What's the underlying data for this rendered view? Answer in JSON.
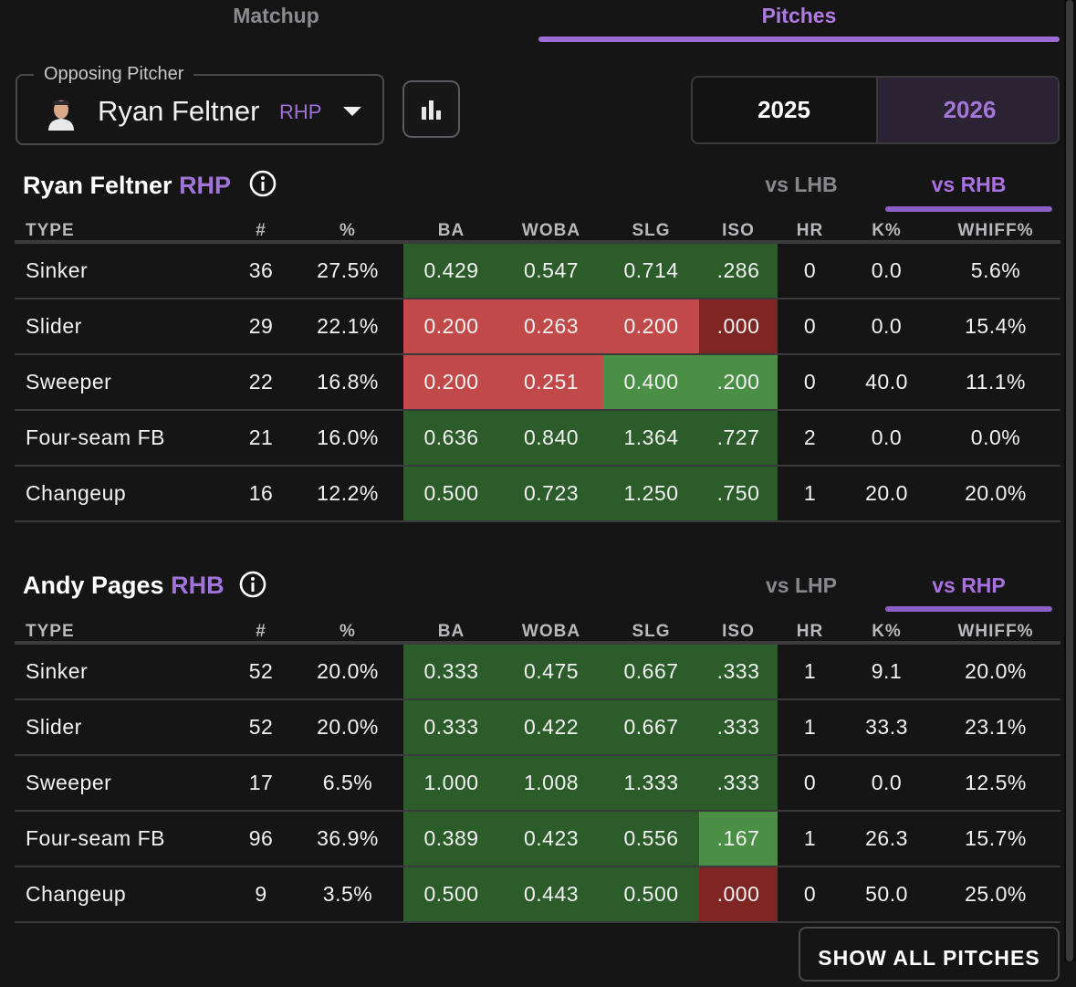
{
  "tabs": [
    {
      "label": "Matchup",
      "active": false
    },
    {
      "label": "Pitches",
      "active": true
    }
  ],
  "pitcher_select": {
    "legend": "Opposing Pitcher",
    "name": "Ryan Feltner",
    "hand": "RHP"
  },
  "years": [
    {
      "label": "2025",
      "active": false
    },
    {
      "label": "2026",
      "active": true
    }
  ],
  "colors": {
    "accent": "#9d6cd6",
    "good": "#2b5c2a",
    "good_strong": "#4a8f45",
    "bad": "#c2494a",
    "bad_strong": "#7f2523"
  },
  "columns": [
    "TYPE",
    "#",
    "%",
    "BA",
    "WOBA",
    "SLG",
    "ISO",
    "HR",
    "K%",
    "WHIFF%"
  ],
  "pitcher_section": {
    "name": "Ryan Feltner",
    "hand": "RHP",
    "splits": [
      {
        "label": "vs LHB",
        "active": false
      },
      {
        "label": "vs RHB",
        "active": true
      }
    ],
    "rows": [
      {
        "type": "Sinker",
        "count": "36",
        "pct": "27.5%",
        "ba": "0.429",
        "woba": "0.547",
        "slg": "0.714",
        "iso": ".286",
        "hr": "0",
        "k": "0.0",
        "whiff": "5.6%",
        "colors": {
          "ba": "green",
          "woba": "green",
          "slg": "green",
          "iso": "green"
        }
      },
      {
        "type": "Slider",
        "count": "29",
        "pct": "22.1%",
        "ba": "0.200",
        "woba": "0.263",
        "slg": "0.200",
        "iso": ".000",
        "hr": "0",
        "k": "0.0",
        "whiff": "15.4%",
        "colors": {
          "ba": "red",
          "woba": "red",
          "slg": "red",
          "iso": "dred"
        }
      },
      {
        "type": "Sweeper",
        "count": "22",
        "pct": "16.8%",
        "ba": "0.200",
        "woba": "0.251",
        "slg": "0.400",
        "iso": ".200",
        "hr": "0",
        "k": "40.0",
        "whiff": "11.1%",
        "colors": {
          "ba": "red",
          "woba": "red",
          "slg": "lgreen",
          "iso": "lgreen"
        }
      },
      {
        "type": "Four-seam FB",
        "count": "21",
        "pct": "16.0%",
        "ba": "0.636",
        "woba": "0.840",
        "slg": "1.364",
        "iso": ".727",
        "hr": "2",
        "k": "0.0",
        "whiff": "0.0%",
        "colors": {
          "ba": "green",
          "woba": "green",
          "slg": "green",
          "iso": "green"
        }
      },
      {
        "type": "Changeup",
        "count": "16",
        "pct": "12.2%",
        "ba": "0.500",
        "woba": "0.723",
        "slg": "1.250",
        "iso": ".750",
        "hr": "1",
        "k": "20.0",
        "whiff": "20.0%",
        "colors": {
          "ba": "green",
          "woba": "green",
          "slg": "green",
          "iso": "green"
        }
      }
    ]
  },
  "batter_section": {
    "name": "Andy Pages",
    "hand": "RHB",
    "splits": [
      {
        "label": "vs LHP",
        "active": false
      },
      {
        "label": "vs RHP",
        "active": true
      }
    ],
    "rows": [
      {
        "type": "Sinker",
        "count": "52",
        "pct": "20.0%",
        "ba": "0.333",
        "woba": "0.475",
        "slg": "0.667",
        "iso": ".333",
        "hr": "1",
        "k": "9.1",
        "whiff": "20.0%",
        "colors": {
          "ba": "green",
          "woba": "green",
          "slg": "green",
          "iso": "green"
        }
      },
      {
        "type": "Slider",
        "count": "52",
        "pct": "20.0%",
        "ba": "0.333",
        "woba": "0.422",
        "slg": "0.667",
        "iso": ".333",
        "hr": "1",
        "k": "33.3",
        "whiff": "23.1%",
        "colors": {
          "ba": "green",
          "woba": "green",
          "slg": "green",
          "iso": "green"
        }
      },
      {
        "type": "Sweeper",
        "count": "17",
        "pct": "6.5%",
        "ba": "1.000",
        "woba": "1.008",
        "slg": "1.333",
        "iso": ".333",
        "hr": "0",
        "k": "0.0",
        "whiff": "12.5%",
        "colors": {
          "ba": "green",
          "woba": "green",
          "slg": "green",
          "iso": "green"
        }
      },
      {
        "type": "Four-seam FB",
        "count": "96",
        "pct": "36.9%",
        "ba": "0.389",
        "woba": "0.423",
        "slg": "0.556",
        "iso": ".167",
        "hr": "1",
        "k": "26.3",
        "whiff": "15.7%",
        "colors": {
          "ba": "green",
          "woba": "green",
          "slg": "green",
          "iso": "lgreen"
        }
      },
      {
        "type": "Changeup",
        "count": "9",
        "pct": "3.5%",
        "ba": "0.500",
        "woba": "0.443",
        "slg": "0.500",
        "iso": ".000",
        "hr": "0",
        "k": "50.0",
        "whiff": "25.0%",
        "colors": {
          "ba": "green",
          "woba": "green",
          "slg": "green",
          "iso": "dred"
        }
      }
    ]
  },
  "show_all_label": "SHOW ALL PITCHES"
}
